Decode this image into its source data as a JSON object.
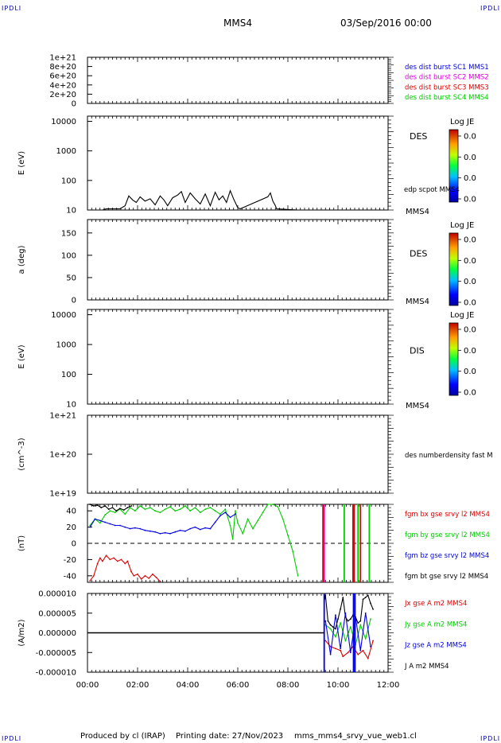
{
  "header": {
    "corner_label": "IPDLI",
    "spacecraft": "MMS4",
    "date": "03/Sep/2016 00:00"
  },
  "footer": {
    "produced": "Produced by cl (IRAP)",
    "printing": "Printing date: 27/Nov/2023",
    "file": "mms_mms4_srvy_vue_web1.cl"
  },
  "colors": {
    "black": "#000000",
    "red": "#dd0000",
    "green": "#00cc00",
    "blue": "#0000dd",
    "magenta": "#dd00dd",
    "cyan": "#00bbbb"
  },
  "chart_data": [
    {
      "type": "line",
      "id": "burst",
      "y_ticks": [
        "1e+21",
        "8e+20",
        "6e+20",
        "4e+20",
        "2e+20",
        "0"
      ],
      "ylim": [
        0,
        1e+21
      ],
      "reference_line": 0,
      "legend": [
        {
          "text": "des dist burst SC1 MMS1",
          "color": "#0000dd"
        },
        {
          "text": "des dist burst SC2 MMS2",
          "color": "#dd00dd"
        },
        {
          "text": "des dist burst SC3 MMS3",
          "color": "#dd0000"
        },
        {
          "text": "des dist burst SC4 MMS4",
          "color": "#00cc00"
        }
      ]
    },
    {
      "type": "heatmap",
      "id": "des-energy",
      "ylabel": "E (eV)",
      "y_scale": "log",
      "y_ticks": [
        "10000",
        "1000",
        "100",
        "10"
      ],
      "ylim": [
        10,
        15000
      ],
      "species": "DES",
      "satellite": "MMS4",
      "colorbar": {
        "title": "Log JE",
        "ticks": [
          "0.0",
          "0.0",
          "0.0",
          "0.0"
        ]
      },
      "overlay_label": "edp scpot MMS4",
      "overlay_series": {
        "name": "edp scpot MMS4",
        "x": [
          0.6,
          0.75,
          1.3,
          1.5,
          1.65,
          1.8,
          1.95,
          2.1,
          2.3,
          2.5,
          2.7,
          2.9,
          3.05,
          3.2,
          3.4,
          3.6,
          3.75,
          3.9,
          4.1,
          4.3,
          4.5,
          4.7,
          4.9,
          5.1,
          5.25,
          5.4,
          5.55,
          5.7,
          5.85,
          6.0,
          6.1,
          7.2,
          7.3,
          7.4,
          7.5,
          7.55,
          8.4
        ],
        "y": [
          10,
          11,
          11,
          14,
          30,
          22,
          18,
          28,
          20,
          24,
          15,
          30,
          22,
          14,
          26,
          32,
          42,
          18,
          38,
          24,
          16,
          35,
          14,
          40,
          22,
          30,
          18,
          45,
          22,
          12,
          11,
          28,
          38,
          20,
          14,
          11,
          10
        ]
      }
    },
    {
      "type": "heatmap",
      "id": "des-pitch",
      "ylabel": "a (deg)",
      "y_ticks": [
        "150",
        "100",
        "50",
        "0"
      ],
      "ylim": [
        0,
        180
      ],
      "species": "DES",
      "satellite": "MMS4",
      "colorbar": {
        "title": "Log JE",
        "ticks": [
          "0.0",
          "0.0",
          "0.0",
          "0.0"
        ]
      }
    },
    {
      "type": "heatmap",
      "id": "dis-energy",
      "ylabel": "E (eV)",
      "y_scale": "log",
      "y_ticks": [
        "10000",
        "1000",
        "100",
        "10"
      ],
      "ylim": [
        10,
        15000
      ],
      "species": "DIS",
      "satellite": "MMS4",
      "colorbar": {
        "title": "Log JE",
        "ticks": [
          "0.0",
          "0.0",
          "0.0",
          "0.0"
        ]
      }
    },
    {
      "type": "line",
      "id": "density",
      "ylabel": "(cm^-3)",
      "y_scale": "log",
      "y_ticks": [
        "1e+21",
        "1e+20",
        "1e+19"
      ],
      "ylim": [
        1e+19,
        1e+21
      ],
      "legend": [
        {
          "text": "des numberdensity fast M",
          "color": "#000000"
        }
      ]
    },
    {
      "type": "line",
      "id": "fgm",
      "ylabel": "(nT)",
      "y_ticks": [
        "40",
        "20",
        "0",
        "-20",
        "-40"
      ],
      "ylim": [
        -48,
        48
      ],
      "reference_line": 0,
      "legend": [
        {
          "text": "fgm bx gse srvy l2 MMS4",
          "color": "#dd0000"
        },
        {
          "text": "fgm by gse srvy l2 MMS4",
          "color": "#00cc00"
        },
        {
          "text": "fgm bz gse srvy l2 MMS4",
          "color": "#0000dd"
        },
        {
          "text": "fgm bt gse srvy l2 MMS4",
          "color": "#000000"
        }
      ],
      "series": [
        {
          "name": "fgm bx gse srvy l2 MMS4",
          "color": "#dd0000",
          "x": [
            0.1,
            0.25,
            0.4,
            0.5,
            0.6,
            0.75,
            0.9,
            1.05,
            1.2,
            1.35,
            1.5,
            1.6,
            1.75,
            1.85,
            2.0,
            2.15,
            2.3,
            2.45,
            2.6,
            2.75,
            2.9
          ],
          "y": [
            -46,
            -40,
            -25,
            -18,
            -22,
            -15,
            -20,
            -18,
            -22,
            -20,
            -25,
            -22,
            -35,
            -40,
            -38,
            -44,
            -40,
            -43,
            -38,
            -42,
            -47
          ]
        },
        {
          "name": "fgm by gse srvy l2 MMS4",
          "color": "#00cc00",
          "x": [
            0.1,
            0.3,
            0.5,
            0.7,
            0.9,
            1.1,
            1.3,
            1.5,
            1.7,
            1.9,
            2.1,
            2.3,
            2.5,
            2.7,
            2.9,
            3.1,
            3.3,
            3.5,
            3.7,
            3.9,
            4.1,
            4.3,
            4.5,
            4.7,
            4.9,
            5.1,
            5.3,
            5.5,
            5.7,
            5.8,
            5.9,
            6.0,
            6.2,
            6.4,
            6.6,
            6.8,
            7.0,
            7.2,
            7.4,
            7.6,
            7.8,
            8.0,
            8.2,
            8.4
          ],
          "y": [
            22,
            30,
            25,
            35,
            40,
            38,
            42,
            36,
            44,
            40,
            46,
            42,
            44,
            40,
            38,
            42,
            45,
            40,
            42,
            46,
            40,
            44,
            38,
            42,
            44,
            40,
            36,
            42,
            22,
            5,
            40,
            25,
            12,
            30,
            18,
            28,
            38,
            48,
            48,
            45,
            30,
            10,
            -10,
            -40
          ]
        },
        {
          "name": "fgm bz gse srvy l2 MMS4",
          "color": "#0000dd",
          "x": [
            0.1,
            0.3,
            0.5,
            0.7,
            0.9,
            1.1,
            1.3,
            1.5,
            1.7,
            1.9,
            2.1,
            2.3,
            2.5,
            2.7,
            2.9,
            3.1,
            3.3,
            3.5,
            3.7,
            3.9,
            4.1,
            4.3,
            4.5,
            4.7,
            4.9,
            5.1,
            5.3,
            5.5,
            5.7,
            5.9
          ],
          "y": [
            20,
            30,
            28,
            26,
            24,
            22,
            22,
            20,
            18,
            19,
            18,
            16,
            15,
            14,
            12,
            13,
            12,
            14,
            16,
            15,
            18,
            20,
            17,
            19,
            18,
            26,
            34,
            38,
            32,
            36
          ]
        },
        {
          "name": "fgm bt gse srvy l2 MMS4",
          "color": "#000000",
          "x": [
            0.1,
            0.25,
            0.4,
            0.55,
            0.7,
            0.85,
            1.0,
            1.15,
            1.3,
            1.45,
            1.6,
            1.75
          ],
          "y": [
            48,
            46,
            47,
            44,
            46,
            42,
            44,
            40,
            43,
            41,
            44,
            46
          ]
        }
      ],
      "spikes": [
        {
          "x": 9.4,
          "color": "#dd0000"
        },
        {
          "x": 9.45,
          "color": "#dd00dd"
        },
        {
          "x": 10.25,
          "color": "#00cc00"
        },
        {
          "x": 10.6,
          "color": "#dd0000"
        },
        {
          "x": 10.65,
          "color": "#dd0000"
        },
        {
          "x": 10.8,
          "color": "#00cc00"
        },
        {
          "x": 10.9,
          "color": "#dd0000"
        },
        {
          "x": 11.25,
          "color": "#00cc00"
        }
      ]
    },
    {
      "type": "line",
      "id": "current",
      "ylabel": "(A/m2)",
      "y_ticks": [
        "0.000010",
        "0.000005",
        "0.000000",
        "-0.000005",
        "-0.000010"
      ],
      "ylim": [
        -1e-05,
        1e-05
      ],
      "legend": [
        {
          "text": "Jx gse A m2 MMS4",
          "color": "#dd0000"
        },
        {
          "text": "Jy gse A m2 MMS4",
          "color": "#00cc00"
        },
        {
          "text": "Jz gse A m2 MMS4",
          "color": "#0000dd"
        },
        {
          "text": "J A m2 MMS4",
          "color": "#000000"
        }
      ],
      "series": [
        {
          "name": "J A m2 MMS4",
          "color": "#000000",
          "x": [
            9.45,
            9.5,
            9.6,
            9.7,
            9.8,
            9.9,
            10.0,
            10.1,
            10.2,
            10.3,
            10.4,
            10.5,
            10.6,
            10.7,
            10.8,
            10.9,
            11.0,
            11.1,
            11.2,
            11.3,
            11.4
          ],
          "y": [
            8e-06,
            9.5e-06,
            3e-06,
            2e-06,
            1.5e-06,
            1e-06,
            3.5e-06,
            6e-06,
            9e-06,
            4e-06,
            3e-06,
            3.5e-06,
            4.5e-06,
            4e-06,
            2.5e-06,
            3e-06,
            8.5e-06,
            9e-06,
            9.5e-06,
            7.5e-06,
            6e-06
          ]
        },
        {
          "name": "Jx gse A m2 MMS4",
          "color": "#dd0000",
          "x": [
            9.5,
            9.7,
            9.9,
            10.1,
            10.2,
            10.4,
            10.6,
            10.8,
            11.0,
            11.2,
            11.4
          ],
          "y": [
            -2e-06,
            -3.5e-06,
            -4e-06,
            -4.5e-06,
            -6e-06,
            -5e-06,
            -3.5e-06,
            -5.5e-06,
            -4.5e-06,
            -6.5e-06,
            -2e-06
          ]
        },
        {
          "name": "Jy gse A m2 MMS4",
          "color": "#00cc00",
          "x": [
            9.5,
            9.7,
            9.9,
            10.1,
            10.3,
            10.5,
            10.7,
            10.9,
            11.1,
            11.3
          ],
          "y": [
            2e-06,
            1e-06,
            -1e-06,
            2.5e-06,
            -2e-06,
            1.5e-06,
            -3e-06,
            2e-06,
            -1.5e-06,
            3.5e-06
          ]
        },
        {
          "name": "Jz gse A m2 MMS4",
          "color": "#0000dd",
          "x": [
            9.5,
            9.7,
            9.9,
            10.1,
            10.3,
            10.5,
            10.7,
            10.9,
            11.1,
            11.3
          ],
          "y": [
            3e-06,
            -5.5e-06,
            4.5e-06,
            -4e-06,
            5e-06,
            -5e-06,
            4e-06,
            -4.5e-06,
            5e-06,
            -3.5e-06
          ]
        }
      ],
      "spikes": [
        {
          "x": 9.45,
          "color": "#0000dd"
        },
        {
          "x": 10.62,
          "color": "#0000dd"
        },
        {
          "x": 10.68,
          "color": "#0000dd"
        }
      ]
    }
  ],
  "time_axis": {
    "ticks": [
      "00:00",
      "02:00",
      "04:00",
      "06:00",
      "08:00",
      "10:00",
      "12:00"
    ],
    "range_hours": [
      0,
      12
    ]
  }
}
